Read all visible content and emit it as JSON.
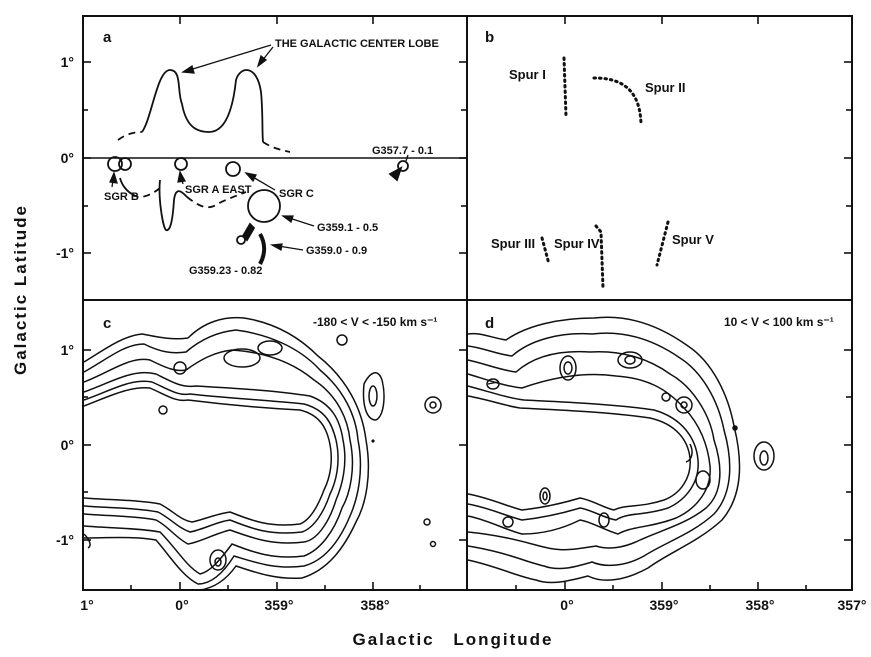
{
  "axes": {
    "y_label": "Galactic Latitude",
    "x_label": "Galactic Longitude",
    "lat_ticks": {
      "p1": "1°",
      "z": "0°",
      "m1": "-1°"
    },
    "lon_ticks_left": {
      "l1": "1°",
      "l0": "0°",
      "l359": "359°",
      "l358": "358°"
    },
    "lon_ticks_right": {
      "l0": "0°",
      "l359": "359°",
      "l358": "358°",
      "l357": "357°"
    }
  },
  "panel_a": {
    "letter": "a",
    "lobe_label": "THE GALACTIC CENTER LOBE",
    "sources": {
      "sgr_b": "SGR B",
      "sgr_a_east": "SGR A EAST",
      "sgr_c": "SGR C",
      "g357": "G357.7 - 0.1",
      "g359_1": "G359.1 - 0.5",
      "g359_0": "G359.0 - 0.9",
      "g359_23": "G359.23 - 0.82"
    }
  },
  "panel_b": {
    "letter": "b",
    "spurs": {
      "s1": "Spur I",
      "s2": "Spur II",
      "s3": "Spur III",
      "s4": "Spur IV",
      "s5": "Spur V"
    }
  },
  "panel_c": {
    "letter": "c",
    "velocity_range": "-180 < V < -150 km s⁻¹"
  },
  "panel_d": {
    "letter": "d",
    "velocity_range": "10 < V < 100 km s⁻¹"
  },
  "colors": {
    "ink": "#111111",
    "background": "#ffffff"
  }
}
